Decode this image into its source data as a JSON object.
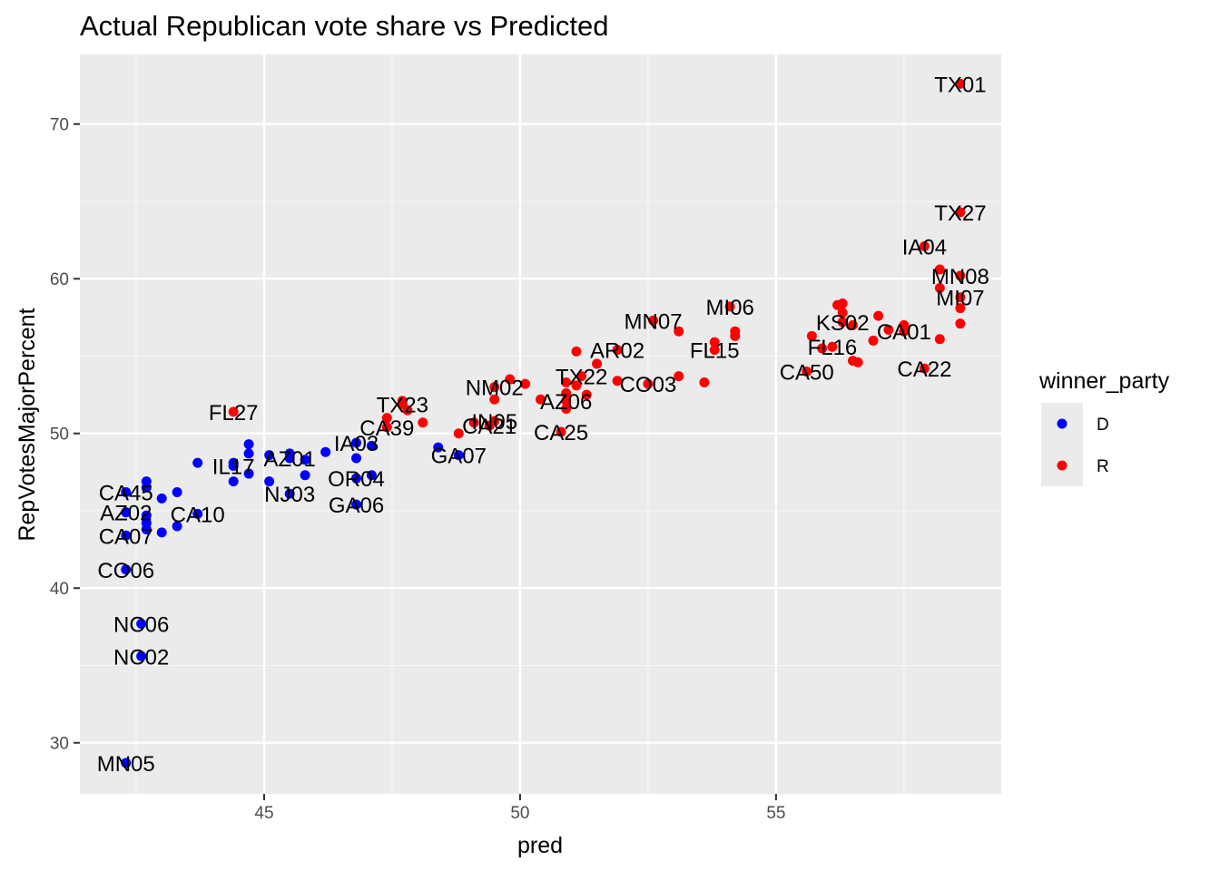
{
  "chart_data": {
    "type": "scatter",
    "title": "Actual Republican vote share vs Predicted",
    "xlabel": "pred",
    "ylabel": "RepVotesMajorPercent",
    "xlim": [
      41.4,
      59.4
    ],
    "ylim": [
      26.7,
      74.5
    ],
    "x_ticks": [
      45,
      50,
      55
    ],
    "y_ticks": [
      30,
      40,
      50,
      60,
      70
    ],
    "grid": true,
    "legend": {
      "title": "winner_party",
      "position": "right",
      "entries": [
        {
          "label": "D",
          "color": "#0000ff"
        },
        {
          "label": "R",
          "color": "#ff0000"
        }
      ]
    },
    "series": [
      {
        "name": "D",
        "color": "#0000ff",
        "points": [
          {
            "x": 42.3,
            "y": 28.7,
            "label": "MN05"
          },
          {
            "x": 42.6,
            "y": 35.6,
            "label": "NC02"
          },
          {
            "x": 42.6,
            "y": 37.7,
            "label": "NC06"
          },
          {
            "x": 42.3,
            "y": 41.2,
            "label": "CO06"
          },
          {
            "x": 42.3,
            "y": 43.4,
            "label": "CA07"
          },
          {
            "x": 42.3,
            "y": 44.9,
            "label": "AZ02"
          },
          {
            "x": 42.3,
            "y": 46.2,
            "label": "CA45"
          },
          {
            "x": 43.7,
            "y": 44.8,
            "label": "CA10"
          },
          {
            "x": 44.4,
            "y": 47.9,
            "label": "IL17"
          },
          {
            "x": 45.5,
            "y": 48.4,
            "label": "AZ01"
          },
          {
            "x": 45.5,
            "y": 46.1,
            "label": "NJ03"
          },
          {
            "x": 46.8,
            "y": 49.4,
            "label": "IA03"
          },
          {
            "x": 46.8,
            "y": 47.1,
            "label": "OR04"
          },
          {
            "x": 46.8,
            "y": 45.4,
            "label": "GA06"
          },
          {
            "x": 48.8,
            "y": 48.6,
            "label": "GA07"
          },
          {
            "x": 42.7,
            "y": 46.9,
            "label": ""
          },
          {
            "x": 42.7,
            "y": 46.5,
            "label": ""
          },
          {
            "x": 42.7,
            "y": 44.7,
            "label": ""
          },
          {
            "x": 42.7,
            "y": 44.2,
            "label": ""
          },
          {
            "x": 42.7,
            "y": 43.8,
            "label": ""
          },
          {
            "x": 43.0,
            "y": 45.8,
            "label": ""
          },
          {
            "x": 43.0,
            "y": 43.6,
            "label": ""
          },
          {
            "x": 43.3,
            "y": 46.2,
            "label": ""
          },
          {
            "x": 43.3,
            "y": 44.0,
            "label": ""
          },
          {
            "x": 43.7,
            "y": 48.1,
            "label": ""
          },
          {
            "x": 44.4,
            "y": 46.9,
            "label": ""
          },
          {
            "x": 44.4,
            "y": 48.1,
            "label": ""
          },
          {
            "x": 44.7,
            "y": 49.3,
            "label": ""
          },
          {
            "x": 44.7,
            "y": 48.7,
            "label": ""
          },
          {
            "x": 44.7,
            "y": 47.4,
            "label": ""
          },
          {
            "x": 45.1,
            "y": 48.6,
            "label": ""
          },
          {
            "x": 45.1,
            "y": 46.9,
            "label": ""
          },
          {
            "x": 45.5,
            "y": 48.7,
            "label": ""
          },
          {
            "x": 45.8,
            "y": 48.3,
            "label": ""
          },
          {
            "x": 45.8,
            "y": 47.3,
            "label": ""
          },
          {
            "x": 46.2,
            "y": 48.8,
            "label": ""
          },
          {
            "x": 46.8,
            "y": 48.4,
            "label": ""
          },
          {
            "x": 47.1,
            "y": 49.2,
            "label": ""
          },
          {
            "x": 47.1,
            "y": 47.3,
            "label": ""
          },
          {
            "x": 48.4,
            "y": 49.1,
            "label": ""
          }
        ]
      },
      {
        "name": "R",
        "color": "#ff0000",
        "points": [
          {
            "x": 58.6,
            "y": 72.6,
            "label": "TX01"
          },
          {
            "x": 58.6,
            "y": 64.3,
            "label": "TX27"
          },
          {
            "x": 57.9,
            "y": 62.1,
            "label": "IA04"
          },
          {
            "x": 58.6,
            "y": 60.2,
            "label": "MN08"
          },
          {
            "x": 58.6,
            "y": 58.8,
            "label": "MI07"
          },
          {
            "x": 54.1,
            "y": 58.2,
            "label": "MI06"
          },
          {
            "x": 52.6,
            "y": 57.3,
            "label": "MN07"
          },
          {
            "x": 56.3,
            "y": 57.2,
            "label": "KS02"
          },
          {
            "x": 57.5,
            "y": 56.6,
            "label": "CA01"
          },
          {
            "x": 56.1,
            "y": 55.6,
            "label": "FL16"
          },
          {
            "x": 53.8,
            "y": 55.4,
            "label": "FL15"
          },
          {
            "x": 55.6,
            "y": 54.0,
            "label": "CA50"
          },
          {
            "x": 57.9,
            "y": 54.2,
            "label": "CA22"
          },
          {
            "x": 51.9,
            "y": 55.4,
            "label": "AR02"
          },
          {
            "x": 51.2,
            "y": 53.7,
            "label": "TX22"
          },
          {
            "x": 49.5,
            "y": 53.0,
            "label": "NM02"
          },
          {
            "x": 52.5,
            "y": 53.2,
            "label": "CO03"
          },
          {
            "x": 50.9,
            "y": 52.1,
            "label": "AZ06"
          },
          {
            "x": 49.5,
            "y": 50.8,
            "label": "IN05"
          },
          {
            "x": 49.4,
            "y": 50.5,
            "label": "CA21"
          },
          {
            "x": 50.8,
            "y": 50.1,
            "label": "CA25"
          },
          {
            "x": 47.7,
            "y": 51.9,
            "label": "TX23"
          },
          {
            "x": 47.4,
            "y": 50.4,
            "label": "CA39"
          },
          {
            "x": 44.4,
            "y": 51.4,
            "label": "FL27"
          },
          {
            "x": 47.4,
            "y": 51.0,
            "label": ""
          },
          {
            "x": 47.7,
            "y": 52.1,
            "label": ""
          },
          {
            "x": 47.8,
            "y": 51.5,
            "label": ""
          },
          {
            "x": 48.1,
            "y": 50.7,
            "label": ""
          },
          {
            "x": 48.8,
            "y": 50.0,
            "label": ""
          },
          {
            "x": 49.1,
            "y": 50.7,
            "label": ""
          },
          {
            "x": 49.5,
            "y": 52.2,
            "label": ""
          },
          {
            "x": 49.8,
            "y": 53.5,
            "label": ""
          },
          {
            "x": 50.1,
            "y": 53.2,
            "label": ""
          },
          {
            "x": 50.4,
            "y": 52.2,
            "label": ""
          },
          {
            "x": 50.9,
            "y": 51.6,
            "label": ""
          },
          {
            "x": 50.9,
            "y": 52.6,
            "label": ""
          },
          {
            "x": 50.9,
            "y": 53.3,
            "label": ""
          },
          {
            "x": 51.1,
            "y": 55.3,
            "label": ""
          },
          {
            "x": 51.1,
            "y": 53.1,
            "label": ""
          },
          {
            "x": 51.3,
            "y": 52.5,
            "label": ""
          },
          {
            "x": 51.5,
            "y": 54.5,
            "label": ""
          },
          {
            "x": 51.9,
            "y": 53.4,
            "label": ""
          },
          {
            "x": 53.1,
            "y": 56.6,
            "label": ""
          },
          {
            "x": 53.1,
            "y": 53.7,
            "label": ""
          },
          {
            "x": 53.6,
            "y": 53.3,
            "label": ""
          },
          {
            "x": 53.8,
            "y": 55.9,
            "label": ""
          },
          {
            "x": 54.2,
            "y": 56.3,
            "label": ""
          },
          {
            "x": 54.2,
            "y": 56.6,
            "label": ""
          },
          {
            "x": 55.7,
            "y": 56.3,
            "label": ""
          },
          {
            "x": 55.9,
            "y": 55.5,
            "label": ""
          },
          {
            "x": 56.2,
            "y": 58.3,
            "label": ""
          },
          {
            "x": 56.3,
            "y": 58.4,
            "label": ""
          },
          {
            "x": 56.3,
            "y": 57.8,
            "label": ""
          },
          {
            "x": 56.5,
            "y": 57.0,
            "label": ""
          },
          {
            "x": 56.5,
            "y": 54.7,
            "label": ""
          },
          {
            "x": 56.6,
            "y": 54.6,
            "label": ""
          },
          {
            "x": 56.9,
            "y": 56.0,
            "label": ""
          },
          {
            "x": 57.0,
            "y": 57.6,
            "label": ""
          },
          {
            "x": 57.2,
            "y": 56.7,
            "label": ""
          },
          {
            "x": 57.5,
            "y": 57.0,
            "label": ""
          },
          {
            "x": 58.2,
            "y": 60.6,
            "label": ""
          },
          {
            "x": 58.2,
            "y": 59.4,
            "label": ""
          },
          {
            "x": 58.2,
            "y": 56.1,
            "label": ""
          },
          {
            "x": 58.6,
            "y": 58.1,
            "label": ""
          },
          {
            "x": 58.6,
            "y": 57.1,
            "label": ""
          }
        ]
      }
    ]
  }
}
